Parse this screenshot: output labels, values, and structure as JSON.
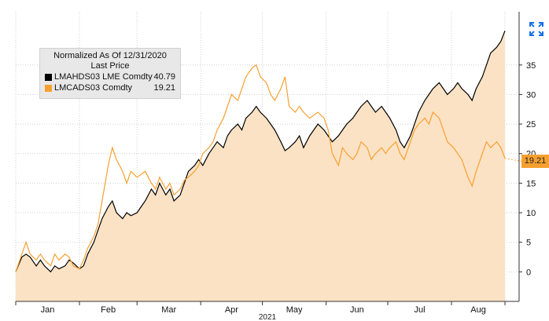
{
  "chart_data": {
    "type": "area",
    "legend": {
      "title": "Normalized As Of 12/31/2020",
      "subtitle": "Last Price",
      "placement": "top-left"
    },
    "x_labels": [
      "Jan",
      "Feb",
      "Mar",
      "Apr",
      "May",
      "Jun",
      "Jul",
      "Aug"
    ],
    "x_year_label": "2021",
    "y_ticks": [
      "0",
      "5",
      "10",
      "15",
      "20",
      "25",
      "30",
      "35"
    ],
    "ylim": [
      -5,
      44
    ],
    "grid": true,
    "series": [
      {
        "name": "LMAHDS03 LME Comdty",
        "last_value": "40.79",
        "color": "#000000",
        "fill": "#fbe2c4",
        "style": "area",
        "points": [
          [
            "2021-01-01",
            0
          ],
          [
            "2021-01-04",
            2.5
          ],
          [
            "2021-01-06",
            3
          ],
          [
            "2021-01-08",
            2.5
          ],
          [
            "2021-01-11",
            1
          ],
          [
            "2021-01-13",
            2
          ],
          [
            "2021-01-15",
            1
          ],
          [
            "2021-01-18",
            0
          ],
          [
            "2021-01-20",
            1
          ],
          [
            "2021-01-22",
            0.5
          ],
          [
            "2021-01-25",
            1
          ],
          [
            "2021-01-27",
            2
          ],
          [
            "2021-01-29",
            1.5
          ],
          [
            "2021-02-01",
            0.5
          ],
          [
            "2021-02-03",
            1
          ],
          [
            "2021-02-05",
            3
          ],
          [
            "2021-02-08",
            5
          ],
          [
            "2021-02-10",
            7
          ],
          [
            "2021-02-12",
            9
          ],
          [
            "2021-02-15",
            11
          ],
          [
            "2021-02-17",
            12
          ],
          [
            "2021-02-19",
            10
          ],
          [
            "2021-02-22",
            9
          ],
          [
            "2021-02-24",
            10
          ],
          [
            "2021-02-26",
            9.5
          ],
          [
            "2021-03-01",
            10
          ],
          [
            "2021-03-03",
            11
          ],
          [
            "2021-03-05",
            12
          ],
          [
            "2021-03-08",
            14
          ],
          [
            "2021-03-10",
            13
          ],
          [
            "2021-03-12",
            15
          ],
          [
            "2021-03-15",
            13
          ],
          [
            "2021-03-17",
            14
          ],
          [
            "2021-03-19",
            12
          ],
          [
            "2021-03-22",
            13
          ],
          [
            "2021-03-24",
            15
          ],
          [
            "2021-03-26",
            17
          ],
          [
            "2021-03-29",
            18
          ],
          [
            "2021-03-31",
            19
          ],
          [
            "2021-04-02",
            18
          ],
          [
            "2021-04-05",
            20
          ],
          [
            "2021-04-07",
            21
          ],
          [
            "2021-04-09",
            22
          ],
          [
            "2021-04-12",
            21
          ],
          [
            "2021-04-14",
            23
          ],
          [
            "2021-04-16",
            24
          ],
          [
            "2021-04-19",
            25
          ],
          [
            "2021-04-21",
            24
          ],
          [
            "2021-04-23",
            26
          ],
          [
            "2021-04-26",
            27
          ],
          [
            "2021-04-28",
            28
          ],
          [
            "2021-04-30",
            27
          ],
          [
            "2021-05-03",
            26
          ],
          [
            "2021-05-05",
            25
          ],
          [
            "2021-05-07",
            24
          ],
          [
            "2021-05-10",
            22
          ],
          [
            "2021-05-12",
            20.5
          ],
          [
            "2021-05-14",
            21
          ],
          [
            "2021-05-17",
            22
          ],
          [
            "2021-05-19",
            23
          ],
          [
            "2021-05-21",
            21
          ],
          [
            "2021-05-24",
            23
          ],
          [
            "2021-05-26",
            24
          ],
          [
            "2021-05-28",
            25
          ],
          [
            "2021-05-31",
            24
          ],
          [
            "2021-06-02",
            23
          ],
          [
            "2021-06-04",
            22
          ],
          [
            "2021-06-07",
            23
          ],
          [
            "2021-06-09",
            24
          ],
          [
            "2021-06-11",
            25
          ],
          [
            "2021-06-14",
            26
          ],
          [
            "2021-06-16",
            27
          ],
          [
            "2021-06-18",
            28
          ],
          [
            "2021-06-21",
            29
          ],
          [
            "2021-06-23",
            28
          ],
          [
            "2021-06-25",
            27
          ],
          [
            "2021-06-28",
            28
          ],
          [
            "2021-06-30",
            27
          ],
          [
            "2021-07-02",
            26
          ],
          [
            "2021-07-05",
            24
          ],
          [
            "2021-07-07",
            22
          ],
          [
            "2021-07-09",
            21
          ],
          [
            "2021-07-12",
            23
          ],
          [
            "2021-07-14",
            25
          ],
          [
            "2021-07-16",
            27
          ],
          [
            "2021-07-19",
            29
          ],
          [
            "2021-07-21",
            30
          ],
          [
            "2021-07-23",
            31
          ],
          [
            "2021-07-26",
            32
          ],
          [
            "2021-07-28",
            31
          ],
          [
            "2021-07-30",
            30
          ],
          [
            "2021-08-02",
            31
          ],
          [
            "2021-08-04",
            32
          ],
          [
            "2021-08-06",
            31
          ],
          [
            "2021-08-09",
            30
          ],
          [
            "2021-08-11",
            29
          ],
          [
            "2021-08-13",
            31
          ],
          [
            "2021-08-16",
            33
          ],
          [
            "2021-08-18",
            35
          ],
          [
            "2021-08-20",
            37
          ],
          [
            "2021-08-23",
            38
          ],
          [
            "2021-08-25",
            39
          ],
          [
            "2021-08-27",
            40.79
          ]
        ]
      },
      {
        "name": "LMCADS03 Comdty",
        "last_value": "19.21",
        "color": "#f7a030",
        "style": "line",
        "points": [
          [
            "2021-01-01",
            0
          ],
          [
            "2021-01-04",
            3
          ],
          [
            "2021-01-06",
            5
          ],
          [
            "2021-01-08",
            3
          ],
          [
            "2021-01-11",
            2
          ],
          [
            "2021-01-13",
            3
          ],
          [
            "2021-01-15",
            2
          ],
          [
            "2021-01-18",
            1
          ],
          [
            "2021-01-20",
            3
          ],
          [
            "2021-01-22",
            2
          ],
          [
            "2021-01-25",
            3
          ],
          [
            "2021-01-27",
            2.5
          ],
          [
            "2021-01-29",
            1
          ],
          [
            "2021-02-01",
            0.5
          ],
          [
            "2021-02-03",
            2
          ],
          [
            "2021-02-05",
            4
          ],
          [
            "2021-02-08",
            6
          ],
          [
            "2021-02-10",
            8
          ],
          [
            "2021-02-12",
            12
          ],
          [
            "2021-02-15",
            18
          ],
          [
            "2021-02-17",
            21
          ],
          [
            "2021-02-19",
            19
          ],
          [
            "2021-02-22",
            17
          ],
          [
            "2021-02-24",
            15
          ],
          [
            "2021-02-26",
            17
          ],
          [
            "2021-03-01",
            16
          ],
          [
            "2021-03-03",
            16.5
          ],
          [
            "2021-03-05",
            17
          ],
          [
            "2021-03-08",
            15
          ],
          [
            "2021-03-10",
            14
          ],
          [
            "2021-03-12",
            16
          ],
          [
            "2021-03-15",
            14
          ],
          [
            "2021-03-17",
            15
          ],
          [
            "2021-03-19",
            13
          ],
          [
            "2021-03-22",
            14
          ],
          [
            "2021-03-24",
            15.5
          ],
          [
            "2021-03-26",
            16
          ],
          [
            "2021-03-29",
            17
          ],
          [
            "2021-03-31",
            18
          ],
          [
            "2021-04-02",
            20
          ],
          [
            "2021-04-05",
            21
          ],
          [
            "2021-04-07",
            22
          ],
          [
            "2021-04-09",
            24
          ],
          [
            "2021-04-12",
            26
          ],
          [
            "2021-04-14",
            28
          ],
          [
            "2021-04-16",
            30
          ],
          [
            "2021-04-19",
            29
          ],
          [
            "2021-04-21",
            31
          ],
          [
            "2021-04-23",
            33
          ],
          [
            "2021-04-26",
            34.5
          ],
          [
            "2021-04-28",
            35
          ],
          [
            "2021-04-30",
            33
          ],
          [
            "2021-05-03",
            32
          ],
          [
            "2021-05-05",
            30
          ],
          [
            "2021-05-07",
            29
          ],
          [
            "2021-05-10",
            31
          ],
          [
            "2021-05-12",
            33
          ],
          [
            "2021-05-14",
            28
          ],
          [
            "2021-05-17",
            27
          ],
          [
            "2021-05-19",
            28
          ],
          [
            "2021-05-21",
            27
          ],
          [
            "2021-05-24",
            26
          ],
          [
            "2021-05-26",
            26.5
          ],
          [
            "2021-05-28",
            27
          ],
          [
            "2021-05-31",
            26
          ],
          [
            "2021-06-02",
            24
          ],
          [
            "2021-06-04",
            20
          ],
          [
            "2021-06-07",
            18
          ],
          [
            "2021-06-09",
            21
          ],
          [
            "2021-06-11",
            20
          ],
          [
            "2021-06-14",
            19
          ],
          [
            "2021-06-16",
            20
          ],
          [
            "2021-06-18",
            22
          ],
          [
            "2021-06-21",
            21
          ],
          [
            "2021-06-23",
            19
          ],
          [
            "2021-06-25",
            20
          ],
          [
            "2021-06-28",
            21
          ],
          [
            "2021-06-30",
            20
          ],
          [
            "2021-07-02",
            21
          ],
          [
            "2021-07-05",
            22
          ],
          [
            "2021-07-07",
            20
          ],
          [
            "2021-07-09",
            19
          ],
          [
            "2021-07-12",
            22
          ],
          [
            "2021-07-14",
            24
          ],
          [
            "2021-07-16",
            25
          ],
          [
            "2021-07-19",
            26
          ],
          [
            "2021-07-21",
            25
          ],
          [
            "2021-07-23",
            27
          ],
          [
            "2021-07-26",
            26
          ],
          [
            "2021-07-28",
            24
          ],
          [
            "2021-07-30",
            22
          ],
          [
            "2021-08-02",
            21
          ],
          [
            "2021-08-04",
            20
          ],
          [
            "2021-08-06",
            19
          ],
          [
            "2021-08-09",
            16
          ],
          [
            "2021-08-11",
            14.5
          ],
          [
            "2021-08-13",
            17
          ],
          [
            "2021-08-16",
            20
          ],
          [
            "2021-08-18",
            22
          ],
          [
            "2021-08-20",
            21
          ],
          [
            "2021-08-23",
            22
          ],
          [
            "2021-08-25",
            21
          ],
          [
            "2021-08-27",
            19.21
          ]
        ]
      }
    ]
  }
}
